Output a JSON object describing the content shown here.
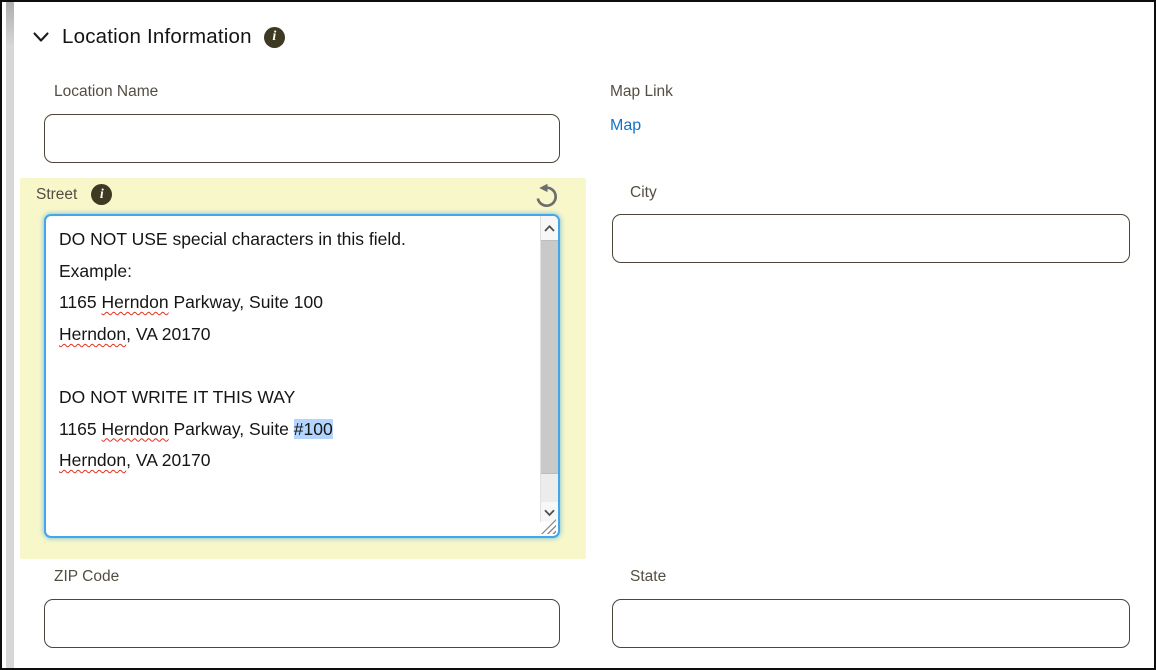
{
  "header": {
    "title": "Location Information"
  },
  "fields": {
    "location_name": {
      "label": "Location Name",
      "value": ""
    },
    "map_link": {
      "label": "Map Link",
      "link_text": "Map"
    },
    "street": {
      "label": "Street",
      "lines": [
        {
          "segments": [
            {
              "text": "DO NOT USE special characters in this field."
            }
          ]
        },
        {
          "segments": [
            {
              "text": "Example:"
            }
          ]
        },
        {
          "segments": [
            {
              "text": "1165 "
            },
            {
              "text": "Herndon",
              "misspelled": true
            },
            {
              "text": " Parkway, Suite 100"
            }
          ]
        },
        {
          "segments": [
            {
              "text": "Herndon",
              "misspelled": true
            },
            {
              "text": ", VA 20170"
            }
          ]
        },
        {
          "segments": [
            {
              "text": ""
            }
          ]
        },
        {
          "segments": [
            {
              "text": "DO NOT WRITE IT THIS WAY"
            }
          ]
        },
        {
          "segments": [
            {
              "text": "1165 "
            },
            {
              "text": "Herndon",
              "misspelled": true
            },
            {
              "text": " Parkway, Suite "
            },
            {
              "text": "#100",
              "selected": true
            }
          ]
        },
        {
          "segments": [
            {
              "text": "Herndon",
              "misspelled": true
            },
            {
              "text": ", VA 20170"
            }
          ]
        }
      ]
    },
    "city": {
      "label": "City",
      "value": ""
    },
    "zip": {
      "label": "ZIP Code",
      "value": ""
    },
    "state": {
      "label": "State",
      "value": ""
    }
  },
  "colors": {
    "highlight_yellow": "#f7f7c9",
    "focus_blue": "#44a5e8",
    "selection_blue": "#b3d4fc",
    "link_blue": "#1272c8",
    "spellcheck_red": "#e0321c",
    "label_color": "#534e42",
    "input_border": "#4b4638",
    "info_icon_bg": "#3d3922"
  }
}
